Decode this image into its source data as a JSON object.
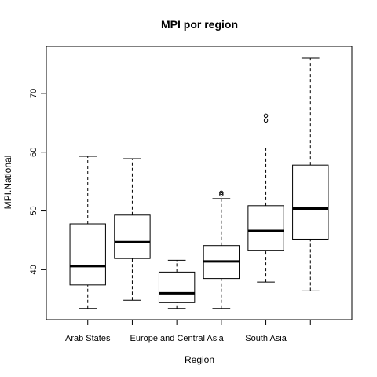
{
  "chart_data": {
    "type": "boxplot",
    "title": "MPI por region",
    "xlabel": "Region",
    "ylabel": "MPI.National",
    "ylim": [
      31.5,
      78
    ],
    "y_ticks": [
      40,
      50,
      60,
      70
    ],
    "grid": false,
    "categories": [
      "Arab States",
      "",
      "Europe and Central Asia",
      "",
      "South Asia",
      ""
    ],
    "boxes": [
      {
        "whisker_low": 33.4,
        "q1": 37.4,
        "median": 40.6,
        "q3": 47.8,
        "whisker_high": 59.3,
        "outliers": []
      },
      {
        "whisker_low": 34.8,
        "q1": 41.9,
        "median": 44.7,
        "q3": 49.3,
        "whisker_high": 58.9,
        "outliers": []
      },
      {
        "whisker_low": 33.4,
        "q1": 34.4,
        "median": 36.0,
        "q3": 39.6,
        "whisker_high": 41.6,
        "outliers": []
      },
      {
        "whisker_low": 33.4,
        "q1": 38.5,
        "median": 41.4,
        "q3": 44.1,
        "whisker_high": 52.1,
        "outliers": [
          52.8,
          53.1
        ]
      },
      {
        "whisker_low": 37.9,
        "q1": 43.3,
        "median": 46.6,
        "q3": 50.9,
        "whisker_high": 60.7,
        "outliers": [
          65.4,
          66.2
        ]
      },
      {
        "whisker_low": 36.4,
        "q1": 45.2,
        "median": 50.4,
        "q3": 57.8,
        "whisker_high": 76.0,
        "outliers": []
      }
    ]
  }
}
